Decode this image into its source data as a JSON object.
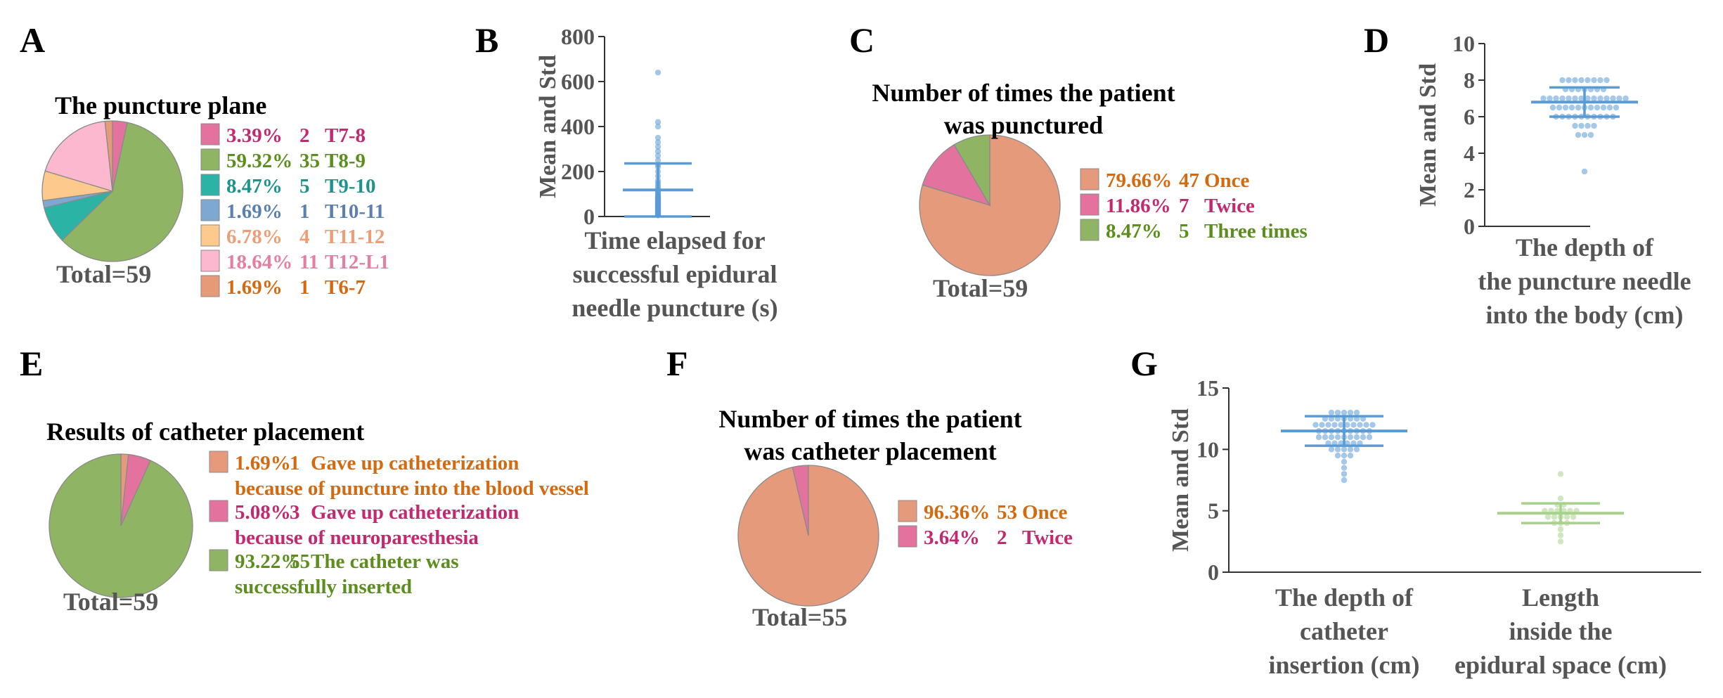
{
  "chart_data": [
    {
      "panel": "A",
      "type": "pie",
      "title": "The puncture plane",
      "total_label": "Total=59",
      "slices": [
        {
          "percent": "3.39%",
          "count": 2,
          "label": "T7-8",
          "value": 3.39,
          "color": "#e3729f",
          "text_color": "#c2296f"
        },
        {
          "percent": "59.32%",
          "count": 35,
          "label": "T8-9",
          "value": 59.32,
          "color": "#8fb464",
          "text_color": "#5b8e1c"
        },
        {
          "percent": "8.47%",
          "count": 5,
          "label": "T9-10",
          "value": 8.47,
          "color": "#2bb4a6",
          "text_color": "#1d948a"
        },
        {
          "percent": "1.69%",
          "count": 1,
          "label": "T10-11",
          "value": 1.69,
          "color": "#7ea7d1",
          "text_color": "#5b7fae"
        },
        {
          "percent": "6.78%",
          "count": 4,
          "label": "T11-12",
          "value": 6.78,
          "color": "#fdc98c",
          "text_color": "#ed9e78"
        },
        {
          "percent": "18.64%",
          "count": 11,
          "label": "T12-L1",
          "value": 18.64,
          "color": "#fcb8cf",
          "text_color": "#e47fa1"
        },
        {
          "percent": "1.69%",
          "count": 1,
          "label": "T6-7",
          "value": 1.69,
          "color": "#e69a78",
          "text_color": "#d4690f"
        }
      ]
    },
    {
      "panel": "B",
      "type": "scatter",
      "ylabel": "Mean and Std",
      "xlabel": "Time elapsed for successful epidural needle puncture (s)",
      "xlabel_lines": [
        "Time elapsed for",
        "successful epidural",
        "needle puncture (s)"
      ],
      "ylim": [
        0,
        800
      ],
      "yticks": [
        0,
        200,
        400,
        600,
        800
      ],
      "mean": 118,
      "std": 118,
      "color": "#5b9bd5",
      "points": [
        640,
        420,
        400,
        350,
        330,
        310,
        290,
        270,
        250,
        230,
        220,
        200,
        180,
        160,
        150,
        140,
        130,
        120,
        115,
        110,
        105,
        100,
        95,
        90,
        88,
        85,
        82,
        80,
        78,
        75,
        72,
        70,
        68,
        65,
        62,
        60,
        58,
        55,
        52,
        50,
        48,
        45,
        42,
        40,
        38,
        35,
        32,
        30,
        28,
        25,
        22,
        20,
        18,
        15,
        12,
        10,
        8,
        6,
        5
      ]
    },
    {
      "panel": "C",
      "type": "pie",
      "title": "Number of times the patient was punctured",
      "title_lines": [
        "Number of times the patient",
        "was punctured"
      ],
      "total_label": "Total=59",
      "slices": [
        {
          "percent": "79.66%",
          "count": 47,
          "label": "Once",
          "value": 79.66,
          "color": "#e69a7c",
          "text_color": "#d4690f"
        },
        {
          "percent": "11.86%",
          "count": 7,
          "label": "Twice",
          "value": 11.86,
          "color": "#e3729f",
          "text_color": "#c2296f"
        },
        {
          "percent": "8.47%",
          "count": 5,
          "label": "Three times",
          "value": 8.47,
          "color": "#8fb464",
          "text_color": "#5b8e1c"
        }
      ]
    },
    {
      "panel": "D",
      "type": "scatter",
      "ylabel": "Mean and Std",
      "xlabel": "The depth of the puncture needle into the body (cm)",
      "xlabel_lines": [
        "The depth of",
        "the puncture needle",
        "into the body (cm)"
      ],
      "ylim": [
        0,
        10
      ],
      "yticks": [
        0,
        2,
        4,
        6,
        8,
        10
      ],
      "mean": 6.8,
      "std": 0.8,
      "color": "#5b9bd5",
      "points": [
        8,
        8,
        8,
        8,
        8,
        8,
        8,
        8,
        7.5,
        7.5,
        7.5,
        7.5,
        7.5,
        7.5,
        7.5,
        7,
        7,
        7,
        7,
        7,
        7,
        7,
        7,
        7,
        7,
        7,
        7,
        7,
        7,
        6.5,
        6.5,
        6.5,
        6.5,
        6.5,
        6.5,
        6.5,
        6.5,
        6.5,
        6.5,
        6.5,
        6,
        6,
        6,
        6,
        6,
        6,
        6,
        6,
        6,
        6,
        5.5,
        5.5,
        5.5,
        5.5,
        5,
        5,
        5,
        3
      ]
    },
    {
      "panel": "E",
      "type": "pie",
      "title": "Results of catheter placement",
      "total_label": "Total=59",
      "slices": [
        {
          "percent": "1.69%",
          "count": 1,
          "label": "Gave up catheterization because of puncture into the blood vessel",
          "label_lines": [
            "Gave up catheterization",
            "because of puncture into the blood vessel"
          ],
          "value": 1.69,
          "color": "#e69a7c",
          "text_color": "#d4690f"
        },
        {
          "percent": "5.08%",
          "count": 3,
          "label": "Gave up catheterization because of neuroparesthesia",
          "label_lines": [
            "Gave up catheterization",
            "because of neuroparesthesia"
          ],
          "value": 5.08,
          "color": "#e3729f",
          "text_color": "#c2296f"
        },
        {
          "percent": "93.22%",
          "count": 55,
          "label": "The catheter was successfully inserted",
          "label_lines": [
            "The catheter was",
            "successfully inserted"
          ],
          "value": 93.22,
          "color": "#8fb464",
          "text_color": "#5b8e1c"
        }
      ]
    },
    {
      "panel": "F",
      "type": "pie",
      "title": "Number of times the patient was catheter placement",
      "title_lines": [
        "Number of times the patient",
        "was catheter placement"
      ],
      "total_label": "Total=55",
      "slices": [
        {
          "percent": "96.36%",
          "count": 53,
          "label": "Once",
          "value": 96.36,
          "color": "#e69a7c",
          "text_color": "#d4690f"
        },
        {
          "percent": "3.64%",
          "count": 2,
          "label": "Twice",
          "value": 3.64,
          "color": "#e3729f",
          "text_color": "#c2296f"
        }
      ]
    },
    {
      "panel": "G",
      "type": "scatter",
      "ylabel": "Mean and Std",
      "ylim": [
        0,
        15
      ],
      "yticks": [
        0,
        5,
        10,
        15
      ],
      "series": [
        {
          "name": "The depth of catheter insertion (cm)",
          "name_lines": [
            "The depth of",
            "catheter",
            "insertion (cm)"
          ],
          "mean": 11.5,
          "std": 1.2,
          "color": "#5b9bd5",
          "points": [
            13,
            13,
            13,
            13,
            13,
            12.5,
            12.5,
            12.5,
            12.5,
            12.5,
            12.5,
            12.5,
            12,
            12,
            12,
            12,
            12,
            12,
            12,
            12,
            12,
            12,
            11.5,
            11.5,
            11.5,
            11.5,
            11.5,
            11.5,
            11.5,
            11.5,
            11.5,
            11,
            11,
            11,
            11,
            11,
            11,
            11,
            11,
            11,
            10.5,
            10.5,
            10.5,
            10.5,
            10.5,
            10.5,
            10,
            10,
            10,
            10,
            10,
            9.5,
            9.5,
            9.5,
            9,
            8.5,
            8,
            7.5
          ]
        },
        {
          "name": "Length inside the epidural space (cm)",
          "name_lines": [
            "Length",
            "inside the",
            "epidural space (cm)"
          ],
          "mean": 4.8,
          "std": 0.8,
          "color": "#a9d18e",
          "points": [
            8,
            6,
            5.5,
            5.5,
            5,
            5,
            5,
            5,
            5,
            5,
            4.5,
            4.5,
            4.5,
            4.5,
            4.5,
            4,
            4,
            4,
            3.5,
            3,
            2.5
          ]
        }
      ]
    }
  ]
}
